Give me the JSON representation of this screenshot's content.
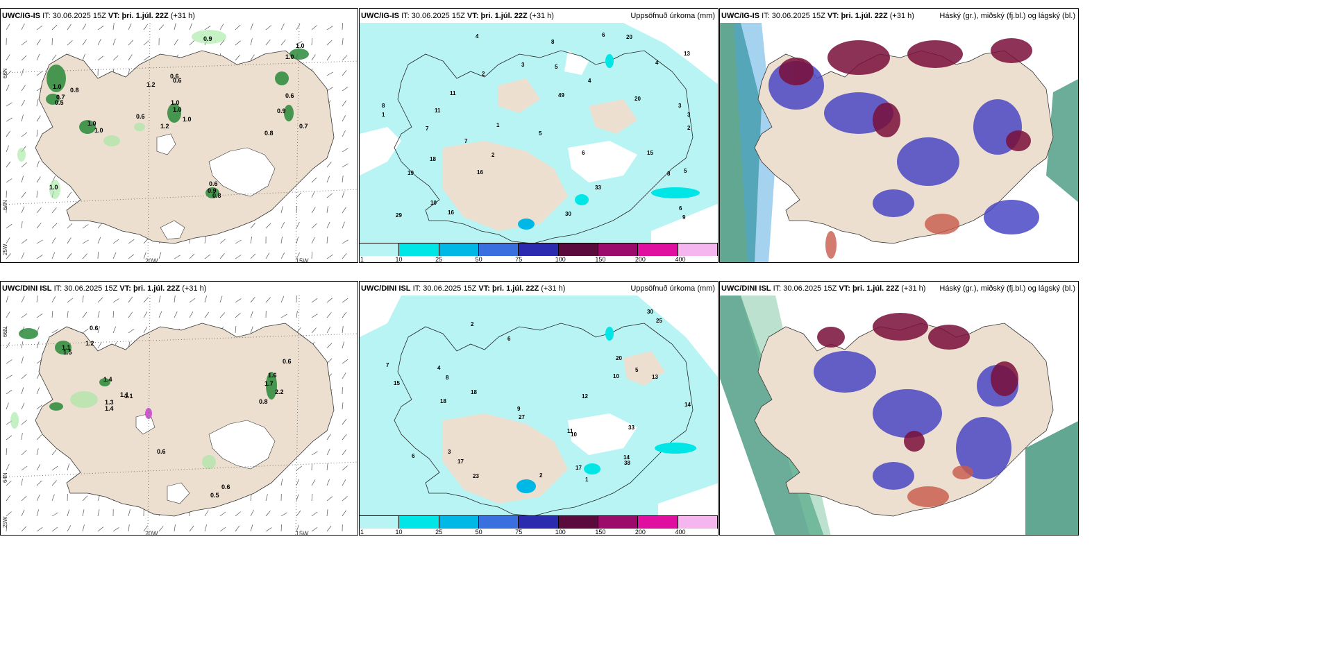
{
  "panels": {
    "p1": {
      "model": "UWC/IG-IS",
      "it_label": "IT:",
      "it": "30.06.2025 15Z",
      "vt_label": "VT:",
      "vt": "þri. 1.júl. 22Z",
      "lead": "(+31 h)",
      "right": ""
    },
    "p2": {
      "model": "UWC/IG-IS",
      "it_label": "IT:",
      "it": "30.06.2025 15Z",
      "vt_label": "VT:",
      "vt": "þri. 1.júl. 22Z",
      "lead": "(+31 h)",
      "right": "Uppsöfnuð úrkoma (mm)"
    },
    "p3": {
      "model": "UWC/IG-IS",
      "it_label": "IT:",
      "it": "30.06.2025 15Z",
      "vt_label": "VT:",
      "vt": "þri. 1.júl. 22Z",
      "lead": "(+31 h)",
      "right": "Háský (gr.), miðský (fj.bl.) og lágský (bl.)"
    },
    "p4": {
      "model": "UWC/DINI ISL",
      "it_label": "IT:",
      "it": "30.06.2025 15Z",
      "vt_label": "VT:",
      "vt": "þri. 1.júl. 22Z",
      "lead": "(+31 h)",
      "right": ""
    },
    "p5": {
      "model": "UWC/DINI ISL",
      "it_label": "IT:",
      "it": "30.06.2025 15Z",
      "vt_label": "VT:",
      "vt": "þri. 1.júl. 22Z",
      "lead": "(+31 h)",
      "right": "Uppsöfnuð úrkoma (mm)"
    },
    "p6": {
      "model": "UWC/DINI ISL",
      "it_label": "IT:",
      "it": "30.06.2025 15Z",
      "vt_label": "VT:",
      "vt": "þri. 1.júl. 22Z",
      "lead": "(+31 h)",
      "right": "Háský (gr.), miðský (fj.bl.) og lágský (bl.)"
    }
  },
  "axes": {
    "lon_20": "20W",
    "lon_15": "15W",
    "lat_66": "66N",
    "lat_64": "64N",
    "lon_25": "25W"
  },
  "colorbar": {
    "labels": [
      "1",
      "10",
      "25",
      "50",
      "75",
      "100",
      "150",
      "200",
      "400"
    ],
    "colors": [
      "#b8f4f4",
      "#00e5e5",
      "#00b8e6",
      "#3a6fe0",
      "#2b2bb0",
      "#5a0a3c",
      "#9b0b6b",
      "#e00fa0",
      "#f5b6ef"
    ]
  },
  "precip_top": {
    "values": [
      {
        "t": "2"
      },
      {
        "t": "3"
      },
      {
        "t": "4"
      },
      {
        "t": "3"
      },
      {
        "t": "1"
      },
      {
        "t": "5"
      },
      {
        "t": "2"
      },
      {
        "t": "6"
      },
      {
        "t": "8"
      },
      {
        "t": "4"
      },
      {
        "t": "11"
      },
      {
        "t": "15"
      },
      {
        "t": "20"
      },
      {
        "t": "16"
      },
      {
        "t": "19"
      },
      {
        "t": "5"
      },
      {
        "t": "7"
      },
      {
        "t": "8"
      },
      {
        "t": "4"
      },
      {
        "t": "3"
      },
      {
        "t": "6"
      },
      {
        "t": "5"
      },
      {
        "t": "10"
      },
      {
        "t": "18"
      },
      {
        "t": "49"
      },
      {
        "t": "20"
      },
      {
        "t": "29"
      },
      {
        "t": "33"
      },
      {
        "t": "30"
      },
      {
        "t": "13"
      },
      {
        "t": "16"
      },
      {
        "t": "9"
      },
      {
        "t": "7"
      },
      {
        "t": "8"
      },
      {
        "t": "11"
      },
      {
        "t": "1"
      },
      {
        "t": "2"
      },
      {
        "t": "6"
      }
    ]
  },
  "precip_bottom": {
    "values": [
      {
        "t": "1"
      },
      {
        "t": "2"
      },
      {
        "t": "3"
      },
      {
        "t": "4"
      },
      {
        "t": "5"
      },
      {
        "t": "17"
      },
      {
        "t": "14"
      },
      {
        "t": "18"
      },
      {
        "t": "27"
      },
      {
        "t": "17"
      },
      {
        "t": "6"
      },
      {
        "t": "7"
      },
      {
        "t": "9"
      },
      {
        "t": "11"
      },
      {
        "t": "10"
      },
      {
        "t": "30"
      },
      {
        "t": "15"
      },
      {
        "t": "25"
      },
      {
        "t": "33"
      },
      {
        "t": "13"
      },
      {
        "t": "14"
      },
      {
        "t": "10"
      },
      {
        "t": "23"
      },
      {
        "t": "38"
      },
      {
        "t": "12"
      },
      {
        "t": "20"
      },
      {
        "t": "18"
      },
      {
        "t": "8"
      },
      {
        "t": "2"
      },
      {
        "t": "6"
      }
    ]
  },
  "wind_top": {
    "values": [
      "0.9",
      "1.0",
      "1.0",
      "0.6",
      "1.2",
      "0.6",
      "0.8",
      "1.0",
      "0.7",
      "0.5",
      "1.0",
      "1.0",
      "1.2",
      "0.6",
      "1.0",
      "0.8",
      "1.0",
      "0.9",
      "0.6",
      "0.7",
      "0.6",
      "1.0",
      "0.9",
      "0.8",
      "1.0"
    ]
  },
  "wind_bottom": {
    "values": [
      "0.6",
      "1.2",
      "1.1",
      "1.5",
      "1.4",
      "1.1",
      "1.3",
      "1.4",
      "0.6",
      "1.6",
      "1.7",
      "2.2",
      "0.8",
      "1.1",
      "0.6",
      "0.5",
      "0.6"
    ]
  }
}
